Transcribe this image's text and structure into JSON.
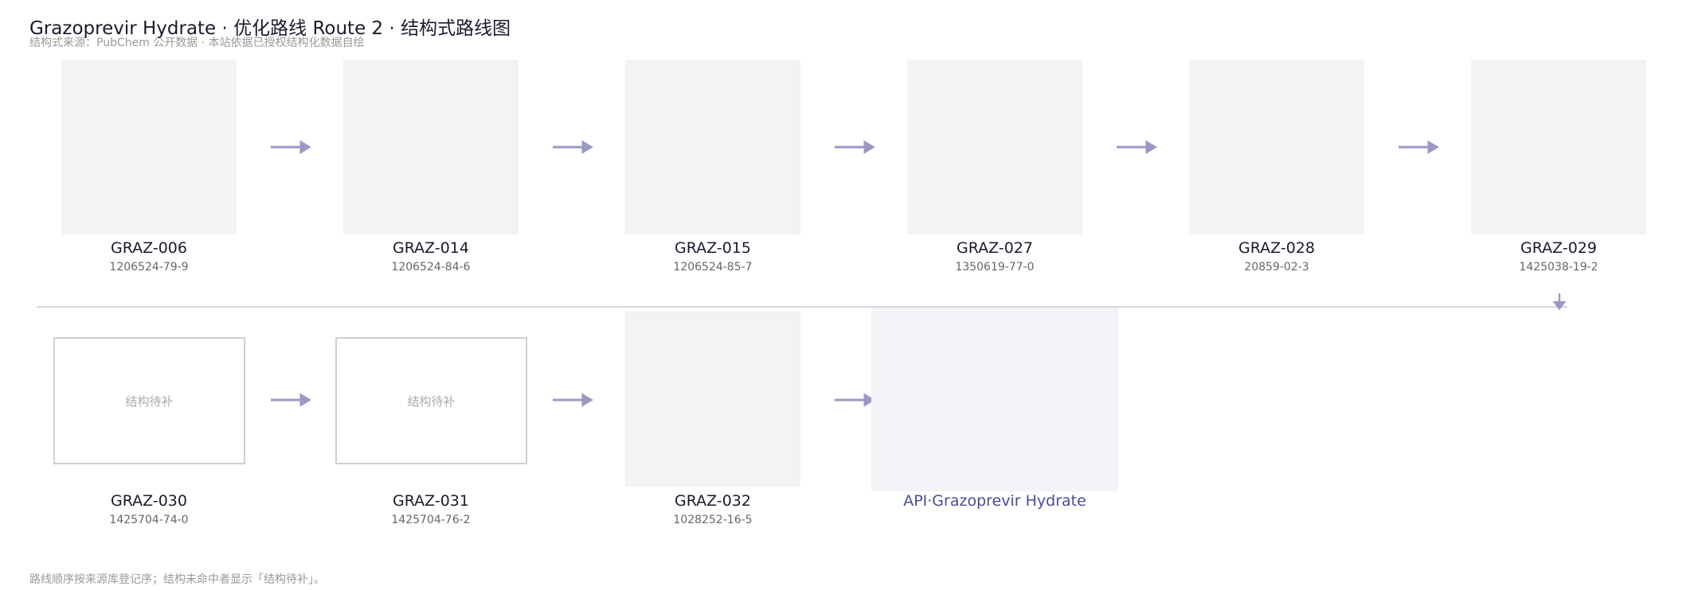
{
  "header": {
    "title": "Grazoprevir Hydrate · 优化路线 Route 2 · 结构式路线图",
    "subtitle": "结构式来源：PubChem 公开数据 · 本站依据已授权结构化数据自绘"
  },
  "nodes": [
    {
      "id": "GRAZ-006",
      "cas": "1206524-79-9"
    },
    {
      "id": "GRAZ-014",
      "cas": "1206524-84-6"
    },
    {
      "id": "GRAZ-015",
      "cas": "1206524-85-7"
    },
    {
      "id": "GRAZ-027",
      "cas": "1350619-77-0"
    },
    {
      "id": "GRAZ-028",
      "cas": "20859-02-3"
    },
    {
      "id": "GRAZ-029",
      "cas": "1425038-19-2"
    },
    {
      "id": "GRAZ-030",
      "cas": "1425704-74-0",
      "placeholder": "结构待补"
    },
    {
      "id": "GRAZ-031",
      "cas": "1425704-76-2",
      "placeholder": "结构待补"
    },
    {
      "id": "GRAZ-032",
      "cas": "1028252-16-5"
    },
    {
      "id": "API·Grazoprevir Hydrate"
    }
  ],
  "footer": "路线顺序按来源库登记序；结构未命中者显示「结构待补」。"
}
